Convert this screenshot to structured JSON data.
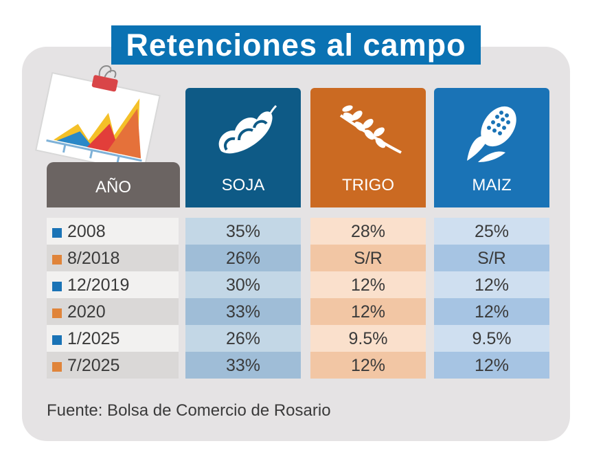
{
  "title": "Retenciones al campo",
  "columns": {
    "year": "AÑO",
    "soja": "SOJA",
    "trigo": "TRIGO",
    "maiz": "MAIZ"
  },
  "colors": {
    "title_bg": "#0a72b3",
    "soja": "#0e5a86",
    "trigo": "#cb6a22",
    "maiz": "#1a73b6",
    "marker_blue": "#1a73b6",
    "marker_orange": "#e0843a"
  },
  "icons": {
    "soja": "soybean-pod-icon",
    "trigo": "wheat-icon",
    "maiz": "corn-icon",
    "decor": "bar-chart-clipboard-icon"
  },
  "rows": [
    {
      "year": "2008",
      "marker": "blue",
      "soja": "35%",
      "trigo": "28%",
      "maiz": "25%"
    },
    {
      "year": "8/2018",
      "marker": "orange",
      "soja": "26%",
      "trigo": "S/R",
      "maiz": "S/R"
    },
    {
      "year": "12/2019",
      "marker": "blue",
      "soja": "30%",
      "trigo": "12%",
      "maiz": "12%"
    },
    {
      "year": "2020",
      "marker": "orange",
      "soja": "33%",
      "trigo": "12%",
      "maiz": "12%"
    },
    {
      "year": "1/2025",
      "marker": "blue",
      "soja": "26%",
      "trigo": "9.5%",
      "maiz": "9.5%"
    },
    {
      "year": "7/2025",
      "marker": "orange",
      "soja": "33%",
      "trigo": "12%",
      "maiz": "12%"
    }
  ],
  "source": "Fuente: Bolsa de Comercio de Rosario",
  "chart_data": {
    "type": "table",
    "title": "Retenciones al campo",
    "columns": [
      "AÑO",
      "SOJA",
      "TRIGO",
      "MAIZ"
    ],
    "rows": [
      [
        "2008",
        "35%",
        "28%",
        "25%"
      ],
      [
        "8/2018",
        "26%",
        "S/R",
        "S/R"
      ],
      [
        "12/2019",
        "30%",
        "12%",
        "12%"
      ],
      [
        "2020",
        "33%",
        "12%",
        "12%"
      ],
      [
        "1/2025",
        "26%",
        "9.5%",
        "9.5%"
      ],
      [
        "7/2025",
        "33%",
        "12%",
        "12%"
      ]
    ]
  }
}
